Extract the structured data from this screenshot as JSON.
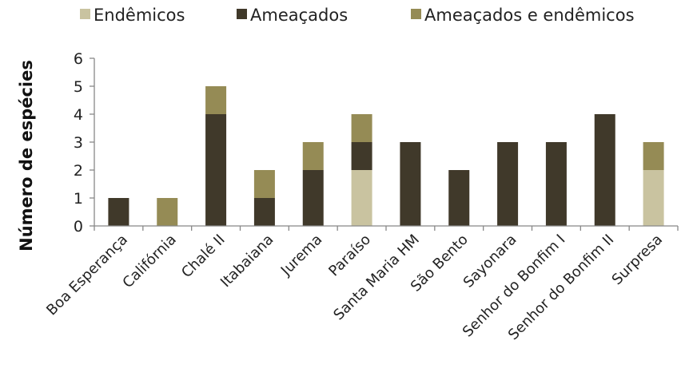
{
  "chart_data": {
    "type": "bar",
    "stacked": true,
    "title": "",
    "xlabel": "",
    "ylabel": "Número de espécies",
    "ylim": [
      0,
      6
    ],
    "yticks": [
      0,
      1,
      2,
      3,
      4,
      5,
      6
    ],
    "grid": false,
    "legend_position": "top",
    "categories": [
      "Boa Esperança",
      "Califórnia",
      "Chalé II",
      "Itabaiana",
      "Jurema",
      "Paraíso",
      "Santa Maria HM",
      "São Bento",
      "Sayonara",
      "Senhor do Bonfim I",
      "Senhor do Bonfim II",
      "Surpresa"
    ],
    "series": [
      {
        "name": "Endêmicos",
        "color": "#c9c3a0",
        "values": [
          0,
          0,
          0,
          0,
          0,
          2,
          0,
          0,
          0,
          0,
          0,
          2
        ]
      },
      {
        "name": "Ameaçados",
        "color": "#40392a",
        "values": [
          1,
          0,
          4,
          1,
          2,
          1,
          3,
          2,
          3,
          3,
          4,
          0
        ]
      },
      {
        "name": "Ameaçados e endêmicos",
        "color": "#958b55",
        "values": [
          0,
          1,
          1,
          1,
          1,
          1,
          0,
          0,
          0,
          0,
          0,
          1
        ]
      }
    ]
  }
}
